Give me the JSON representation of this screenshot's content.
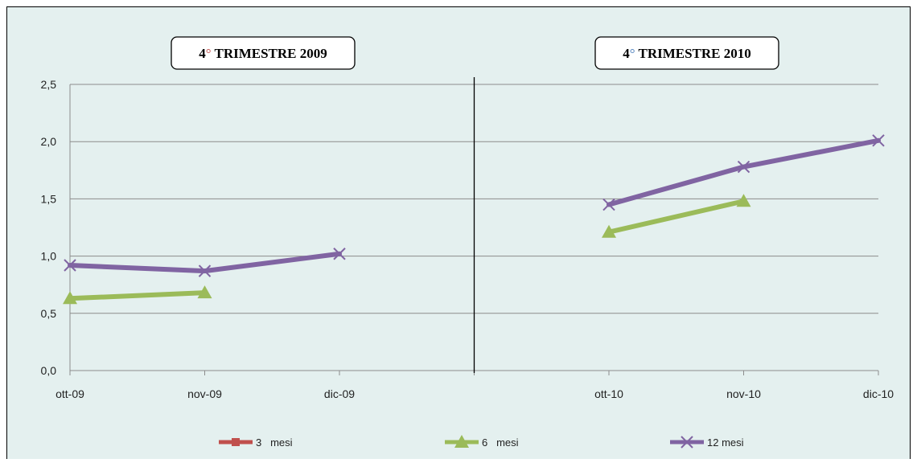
{
  "chart_data": {
    "type": "line",
    "panel_titles": [
      {
        "prefix": "4",
        "degree": "°",
        "suffix": " TRIMESTRE 2009",
        "degree_color": "#c0504d"
      },
      {
        "prefix": "4",
        "degree": "°",
        "suffix": " TRIMESTRE 2010",
        "degree_color": "#4f81bd"
      }
    ],
    "categories": [
      "ott-09",
      "nov-09",
      "dic-09",
      "",
      "ott-10",
      "nov-10",
      "dic-10"
    ],
    "ylim": [
      0,
      2.5
    ],
    "yticks": [
      "0,0",
      "0,5",
      "1,0",
      "1,5",
      "2,0",
      "2,5"
    ],
    "grid": true,
    "legend_position": "bottom",
    "series": [
      {
        "name": "3   mesi",
        "color": "#c0504d",
        "marker": "square",
        "values": [
          null,
          null,
          null,
          null,
          null,
          null,
          null
        ]
      },
      {
        "name": "6   mesi",
        "color": "#9bbb59",
        "marker": "triangle",
        "values": [
          0.63,
          0.68,
          null,
          null,
          1.21,
          1.48,
          null
        ]
      },
      {
        "name": "12 mesi",
        "color": "#8064a2",
        "marker": "x",
        "values": [
          0.92,
          0.87,
          1.02,
          null,
          1.45,
          1.78,
          2.01
        ]
      }
    ]
  },
  "colors": {
    "background": "#e4f0ef",
    "frame": "#000000",
    "grid": "#8c8c8c",
    "divider": "#000000"
  }
}
